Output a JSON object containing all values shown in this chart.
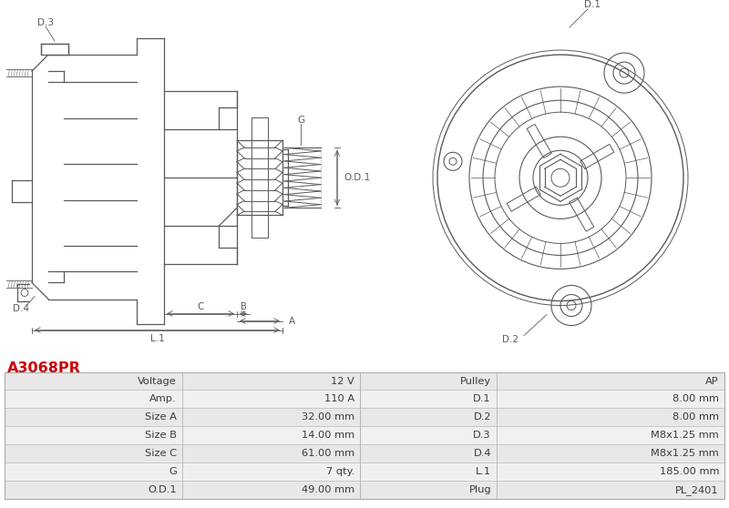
{
  "title": "A3068PR",
  "title_color": "#cc0000",
  "background_color": "#ffffff",
  "table_rows": [
    [
      "Voltage",
      "12 V",
      "Pulley",
      "AP"
    ],
    [
      "Amp.",
      "110 A",
      "D.1",
      "8.00 mm"
    ],
    [
      "Size A",
      "32.00 mm",
      "D.2",
      "8.00 mm"
    ],
    [
      "Size B",
      "14.00 mm",
      "D.3",
      "M8x1.25 mm"
    ],
    [
      "Size C",
      "61.00 mm",
      "D.4",
      "M8x1.25 mm"
    ],
    [
      "G",
      "7 qty.",
      "L.1",
      "185.00 mm"
    ],
    [
      "O.D.1",
      "49.00 mm",
      "Plug",
      "PL_2401"
    ]
  ],
  "line_color": "#5a5a5a",
  "label_color": "#5a5a5a",
  "dim_color": "#5a5a5a",
  "dot_color": "#aaaaaa"
}
